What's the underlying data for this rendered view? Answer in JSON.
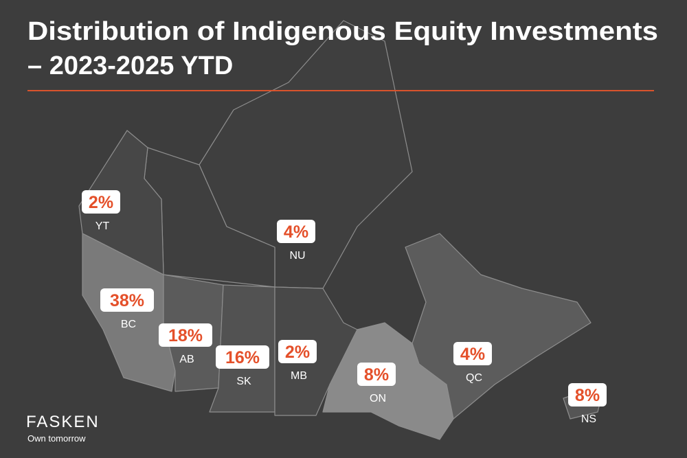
{
  "chart_data": {
    "type": "map",
    "title": [
      "Distribution of Indigenous Equity Investments",
      "– 2023-2025 YTD"
    ],
    "categories": [
      "YT",
      "NU",
      "BC",
      "AB",
      "SK",
      "MB",
      "ON",
      "QC",
      "NS"
    ],
    "values": [
      2,
      4,
      38,
      18,
      16,
      2,
      8,
      4,
      8
    ],
    "value_labels": [
      "2%",
      "4%",
      "38%",
      "18%",
      "16%",
      "2%",
      "8%",
      "4%",
      "8%"
    ],
    "color": "#e4502a"
  },
  "brand": {
    "name": "FASKEN",
    "tagline": "Own tomorrow"
  }
}
